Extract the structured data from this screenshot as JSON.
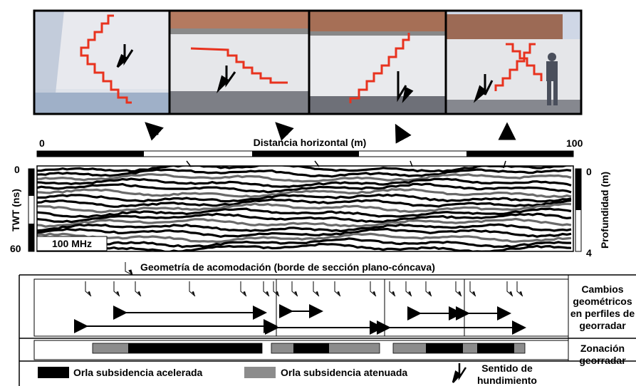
{
  "axis": {
    "distance_title": "Distancia horizontal (m)",
    "distance_start": "0",
    "distance_end": "100",
    "twt_label": "TWT (ns)",
    "twt_top": "0",
    "twt_bottom": "60",
    "depth_label": "Profundidad (m)",
    "depth_top": "0",
    "depth_bottom": "4",
    "frequency_label": "100 MHz"
  },
  "geometry_title": "Geometría de acomodación (borde de sección plano-cóncava)",
  "side_labels": {
    "changes": [
      "Cambios",
      "geométricos",
      "en perfiles de",
      "georradar"
    ],
    "zonation": [
      "Zonación",
      "georradar"
    ]
  },
  "legend": {
    "accelerated": "Orla subsidencia acelerada",
    "attenuated": "Orla subsidencia atenuada",
    "sense": [
      "Sentido de",
      "hundimiento"
    ]
  },
  "colors": {
    "crack": "#e8321e",
    "accelerated": "#000000",
    "attenuated": "#8c8c8c",
    "wall": "#e9e9ec",
    "sky": "#d6dbe6"
  }
}
